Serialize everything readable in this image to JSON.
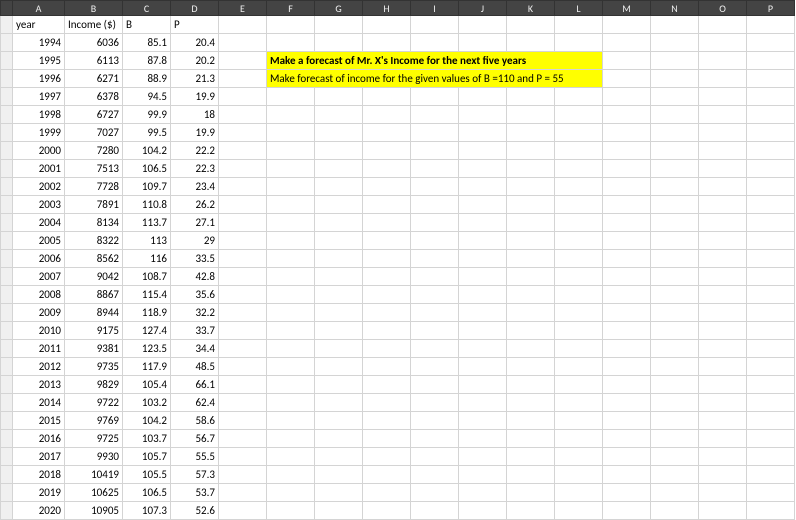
{
  "columns": [
    "A",
    "B",
    "C",
    "D",
    "E",
    "F",
    "G",
    "H",
    "I",
    "J",
    "K",
    "L",
    "M",
    "N",
    "O",
    "P"
  ],
  "headers": {
    "A": "year",
    "B": "Income ($)",
    "C": "B",
    "D": "P"
  },
  "note_line1": "Make a forecast of Mr. X's Income for the next five years",
  "note_line2": "Make forecast of income for the given values of B =110 and P = 55",
  "highlight_bg": "#ffff00",
  "grid_border": "#d4d4d4",
  "colhdr_bg": "#444444",
  "colhdr_fg": "#eeeeee",
  "rows": [
    {
      "year": 1994,
      "income": 6036,
      "b": "85.1",
      "p": "20.4"
    },
    {
      "year": 1995,
      "income": 6113,
      "b": "87.8",
      "p": "20.2"
    },
    {
      "year": 1996,
      "income": 6271,
      "b": "88.9",
      "p": "21.3"
    },
    {
      "year": 1997,
      "income": 6378,
      "b": "94.5",
      "p": "19.9"
    },
    {
      "year": 1998,
      "income": 6727,
      "b": "99.9",
      "p": "18"
    },
    {
      "year": 1999,
      "income": 7027,
      "b": "99.5",
      "p": "19.9"
    },
    {
      "year": 2000,
      "income": 7280,
      "b": "104.2",
      "p": "22.2"
    },
    {
      "year": 2001,
      "income": 7513,
      "b": "106.5",
      "p": "22.3"
    },
    {
      "year": 2002,
      "income": 7728,
      "b": "109.7",
      "p": "23.4"
    },
    {
      "year": 2003,
      "income": 7891,
      "b": "110.8",
      "p": "26.2"
    },
    {
      "year": 2004,
      "income": 8134,
      "b": "113.7",
      "p": "27.1"
    },
    {
      "year": 2005,
      "income": 8322,
      "b": "113",
      "p": "29"
    },
    {
      "year": 2006,
      "income": 8562,
      "b": "116",
      "p": "33.5"
    },
    {
      "year": 2007,
      "income": 9042,
      "b": "108.7",
      "p": "42.8"
    },
    {
      "year": 2008,
      "income": 8867,
      "b": "115.4",
      "p": "35.6"
    },
    {
      "year": 2009,
      "income": 8944,
      "b": "118.9",
      "p": "32.2"
    },
    {
      "year": 2010,
      "income": 9175,
      "b": "127.4",
      "p": "33.7"
    },
    {
      "year": 2011,
      "income": 9381,
      "b": "123.5",
      "p": "34.4"
    },
    {
      "year": 2012,
      "income": 9735,
      "b": "117.9",
      "p": "48.5"
    },
    {
      "year": 2013,
      "income": 9829,
      "b": "105.4",
      "p": "66.1"
    },
    {
      "year": 2014,
      "income": 9722,
      "b": "103.2",
      "p": "62.4"
    },
    {
      "year": 2015,
      "income": 9769,
      "b": "104.2",
      "p": "58.6"
    },
    {
      "year": 2016,
      "income": 9725,
      "b": "103.7",
      "p": "56.7"
    },
    {
      "year": 2017,
      "income": 9930,
      "b": "105.7",
      "p": "55.5"
    },
    {
      "year": 2018,
      "income": 10419,
      "b": "105.5",
      "p": "57.3"
    },
    {
      "year": 2019,
      "income": 10625,
      "b": "106.5",
      "p": "53.7"
    },
    {
      "year": 2020,
      "income": 10905,
      "b": "107.3",
      "p": "52.6"
    }
  ]
}
